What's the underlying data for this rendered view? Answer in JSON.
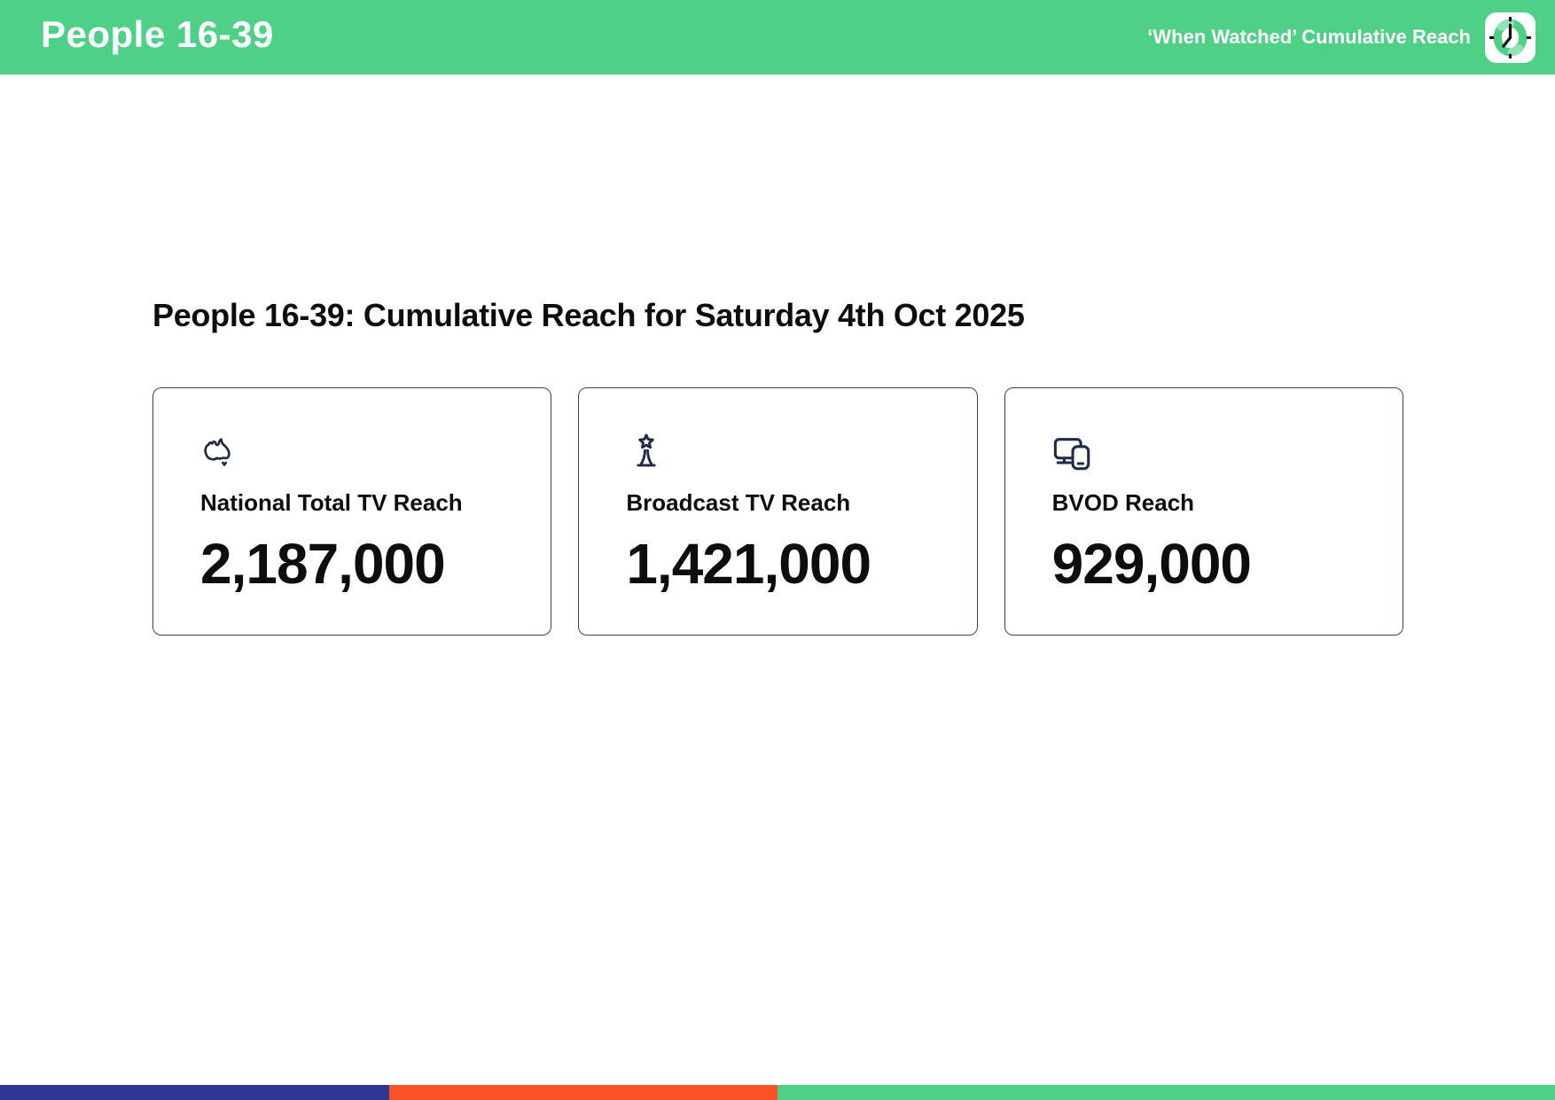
{
  "header": {
    "title": "People 16-39",
    "right_label": "‘When Watched’ Cumulative Reach"
  },
  "main": {
    "heading": "People 16-39: Cumulative Reach for Saturday 4th Oct 2025"
  },
  "cards": [
    {
      "icon": "australia-map-icon",
      "label": "National Total TV Reach",
      "value": "2,187,000"
    },
    {
      "icon": "broadcast-tower-icon",
      "label": "Broadcast TV Reach",
      "value": "1,421,000"
    },
    {
      "icon": "devices-icon",
      "label": "BVOD Reach",
      "value": "929,000"
    }
  ],
  "footer": {
    "segments": [
      {
        "name": "navy-segment",
        "color": "#2E3792",
        "width_pct": 25
      },
      {
        "name": "orange-segment",
        "color": "#FB5126",
        "width_pct": 25
      },
      {
        "name": "green-segment",
        "color": "#4ED187",
        "width_pct": 50
      }
    ]
  },
  "colors": {
    "header_green": "#4ED187",
    "icon_navy": "#1F2A47",
    "card_border": "#3A4560",
    "clock_ring_green": "#4ED187",
    "clock_ring_light": "#8FE5B5"
  }
}
